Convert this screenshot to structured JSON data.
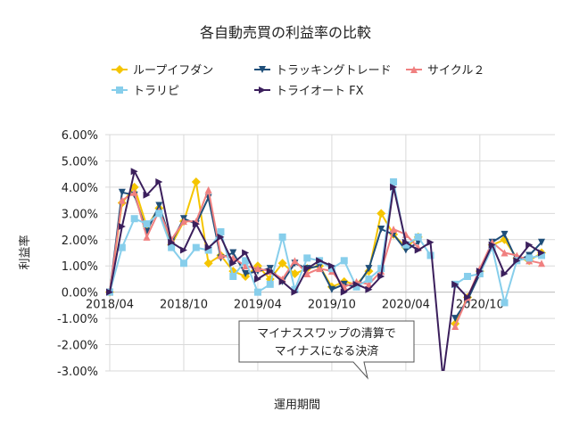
{
  "chart_data": {
    "type": "line",
    "title": "各自動売買の利益率の比較",
    "xlabel": "運用期間",
    "ylabel": "利益率",
    "ylim": [
      -0.03,
      0.06
    ],
    "y_ticks": [
      "6.00%",
      "5.00%",
      "4.00%",
      "3.00%",
      "2.00%",
      "1.00%",
      "0.00%",
      "-1.00%",
      "-2.00%",
      "-3.00%"
    ],
    "x_ticks": [
      "2018/04",
      "2018/10",
      "2019/04",
      "2019/10",
      "2020/04",
      "2020/10"
    ],
    "x": [
      "2018/04",
      "2018/05",
      "2018/06",
      "2018/07",
      "2018/08",
      "2018/09",
      "2018/10",
      "2018/11",
      "2018/12",
      "2019/01",
      "2019/02",
      "2019/03",
      "2019/04",
      "2019/05",
      "2019/06",
      "2019/07",
      "2019/08",
      "2019/09",
      "2019/10",
      "2019/11",
      "2019/12",
      "2020/01",
      "2020/02",
      "2020/03",
      "2020/04",
      "2020/05",
      "2020/06",
      "2020/07",
      "2020/08",
      "2020/09",
      "2020/10",
      "2020/11",
      "2020/12",
      "2021/01",
      "2021/02",
      "2021/03"
    ],
    "grid": true,
    "legend": "top",
    "series": [
      {
        "name": "ループイフダン",
        "color": "#f5c500",
        "marker": "diamond",
        "values": [
          0.0,
          0.034,
          0.04,
          0.025,
          0.032,
          0.018,
          0.027,
          0.042,
          0.011,
          0.014,
          0.008,
          0.006,
          0.01,
          0.005,
          0.011,
          0.007,
          0.009,
          0.01,
          0.002,
          0.004,
          0.003,
          0.008,
          0.03,
          0.022,
          0.017,
          0.021,
          null,
          null,
          -0.012,
          -0.002,
          0.008,
          0.018,
          0.02,
          0.013,
          0.012,
          0.015
        ]
      },
      {
        "name": "トラッキングトレード",
        "color": "#1f4e79",
        "marker": "triangle-down",
        "values": [
          0.0,
          0.038,
          0.037,
          0.023,
          0.033,
          0.019,
          0.028,
          0.026,
          0.036,
          0.013,
          0.015,
          0.007,
          0.008,
          0.009,
          0.004,
          0.011,
          0.009,
          0.01,
          0.001,
          0.003,
          0.002,
          0.009,
          0.024,
          0.022,
          0.016,
          0.019,
          null,
          null,
          -0.01,
          -0.003,
          0.007,
          0.019,
          0.022,
          0.012,
          0.014,
          0.019
        ]
      },
      {
        "name": "サイクル２",
        "color": "#f08080",
        "marker": "triangle-up",
        "values": [
          0.0,
          0.035,
          0.038,
          0.021,
          0.031,
          0.02,
          0.027,
          0.027,
          0.039,
          0.014,
          0.013,
          0.01,
          0.009,
          0.008,
          0.005,
          0.012,
          0.007,
          0.009,
          0.008,
          0.002,
          0.004,
          0.003,
          0.008,
          0.024,
          0.022,
          0.017,
          null,
          null,
          -0.013,
          -0.002,
          0.009,
          0.019,
          0.015,
          0.014,
          0.012,
          0.011
        ]
      },
      {
        "name": "トラリピ",
        "color": "#87ceeb",
        "marker": "square",
        "values": [
          0.0,
          0.017,
          0.028,
          0.026,
          0.03,
          0.017,
          0.011,
          0.017,
          0.016,
          0.023,
          0.006,
          0.012,
          0.0,
          0.003,
          0.021,
          0.001,
          0.013,
          0.012,
          0.009,
          0.012,
          0.002,
          0.005,
          0.009,
          0.042,
          0.018,
          0.021,
          0.014,
          null,
          0.003,
          0.006,
          0.007,
          0.017,
          -0.004,
          0.012,
          0.013,
          0.014
        ]
      },
      {
        "name": "トライオート FX",
        "color": "#3b1f5c",
        "marker": "triangle-right",
        "values": [
          0.0,
          0.025,
          0.046,
          0.037,
          0.042,
          0.019,
          0.016,
          0.026,
          0.017,
          0.021,
          0.011,
          0.015,
          0.005,
          0.008,
          0.004,
          0.0,
          0.009,
          0.012,
          0.01,
          0.0,
          0.003,
          0.001,
          0.006,
          0.04,
          0.019,
          0.016,
          0.019,
          -0.0325,
          0.003,
          -0.002,
          0.008,
          0.018,
          0.007,
          0.012,
          0.018,
          0.015
        ]
      }
    ],
    "annotation": {
      "lines": [
        "マイナススワップの清算で",
        "マイナスになる決済"
      ]
    }
  }
}
